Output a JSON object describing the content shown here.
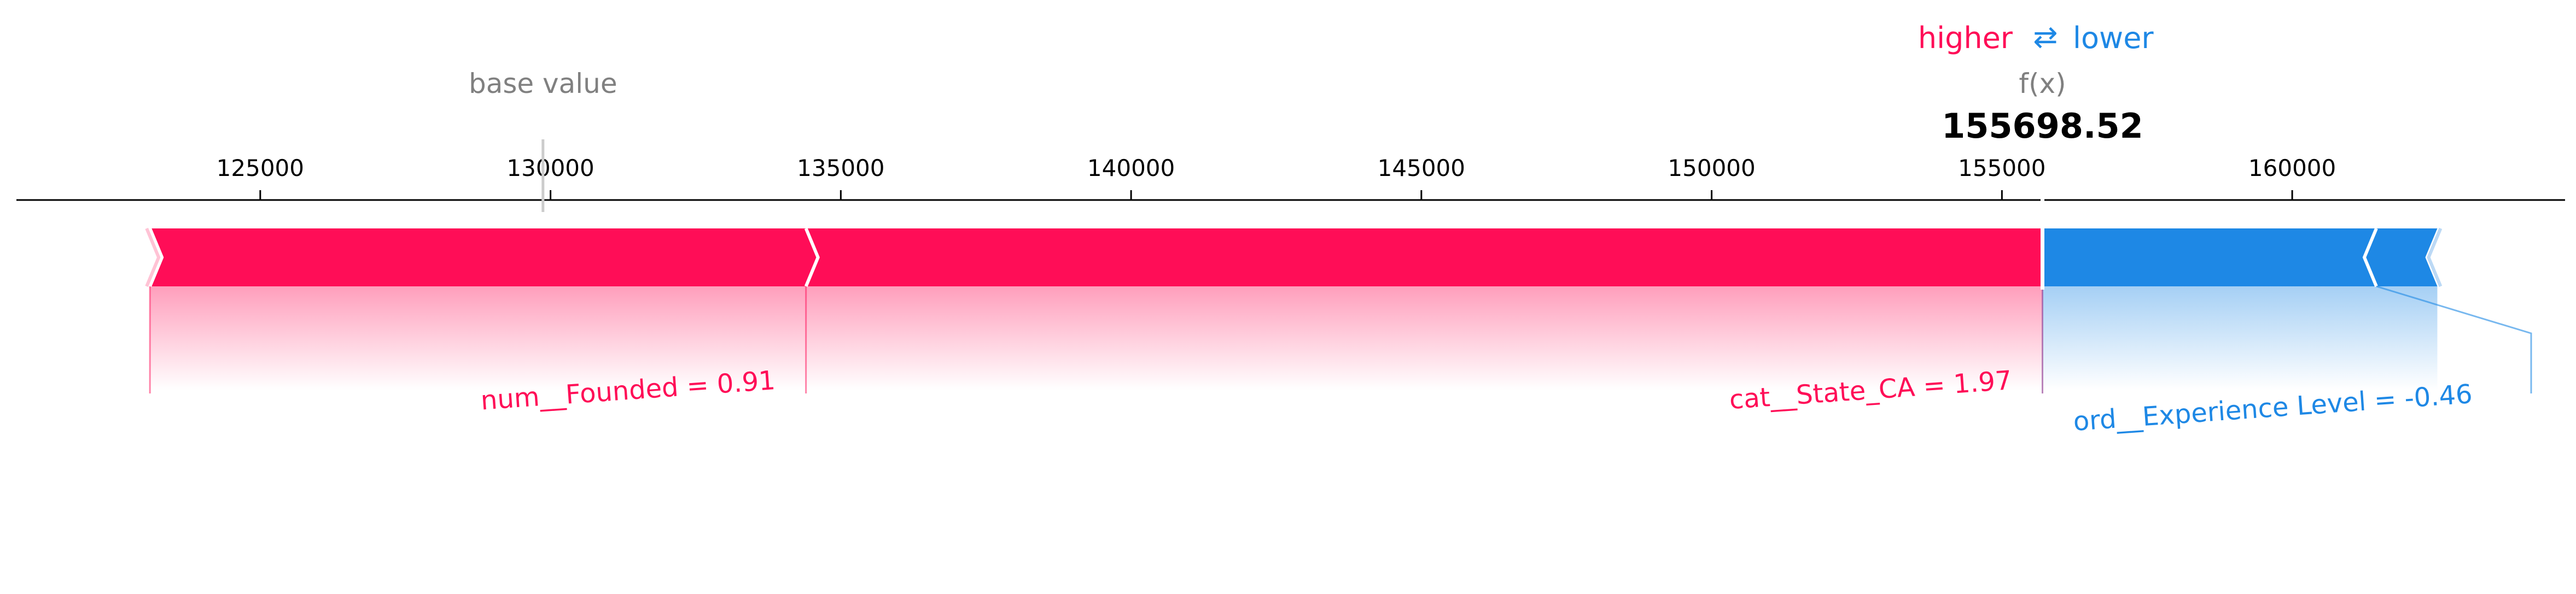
{
  "chart_data": {
    "type": "force",
    "xlim": [
      120800,
      164700
    ],
    "ticks": [
      125000,
      130000,
      135000,
      140000,
      145000,
      150000,
      155000,
      160000
    ],
    "base_value": 129870,
    "output_value": 155698.52,
    "legend": {
      "higher": "higher",
      "arrow": "⇄",
      "lower": "lower",
      "higher_color": "#ff0d57",
      "lower_color": "#1e88e5",
      "placement": "top-center"
    },
    "labels": {
      "base_value": "base value",
      "fx": "f(x)",
      "output": "155698.52"
    },
    "positive": [
      {
        "start": 123100,
        "end": 134400,
        "label": "num__Founded = 0.91"
      },
      {
        "start": 134400,
        "end": 155698.52,
        "label": "cat__State_CA = 1.97"
      }
    ],
    "negative": [
      {
        "start": 155698.52,
        "end": 161450,
        "label": "ord__Experience Level = -0.46"
      },
      {
        "start": 161450,
        "end": 162500,
        "label": ""
      }
    ],
    "colors": {
      "positive": "#ff0d57",
      "negative": "#1e88e5",
      "axis": "#000000",
      "muted": "#808080"
    }
  }
}
